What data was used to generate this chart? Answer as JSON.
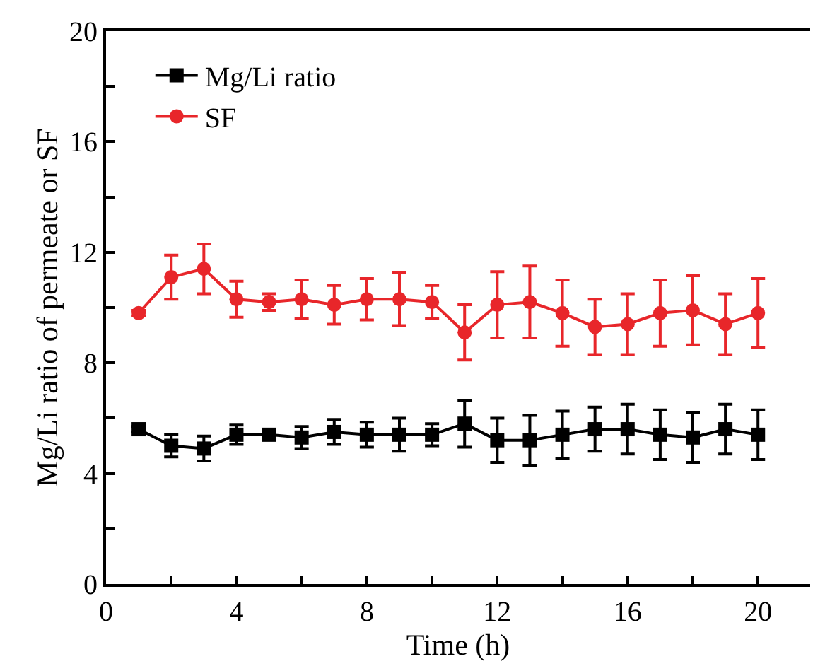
{
  "chart_data": {
    "type": "line",
    "xlabel": "Time (h)",
    "ylabel": "Mg/Li ratio of permeate or SF",
    "x": [
      1,
      2,
      3,
      4,
      5,
      6,
      7,
      8,
      9,
      10,
      11,
      12,
      13,
      14,
      15,
      16,
      17,
      18,
      19,
      20
    ],
    "series": [
      {
        "name": "Mg/Li ratio",
        "color": "#000000",
        "marker": "square",
        "values": [
          5.6,
          5.0,
          4.9,
          5.4,
          5.4,
          5.3,
          5.5,
          5.4,
          5.4,
          5.4,
          5.8,
          5.2,
          5.2,
          5.4,
          5.6,
          5.6,
          5.4,
          5.3,
          5.6,
          5.4
        ],
        "errors": [
          0.1,
          0.4,
          0.45,
          0.35,
          0.15,
          0.4,
          0.45,
          0.45,
          0.6,
          0.4,
          0.85,
          0.8,
          0.9,
          0.85,
          0.8,
          0.9,
          0.9,
          0.9,
          0.9,
          0.9
        ]
      },
      {
        "name": "SF",
        "color": "#e8262a",
        "marker": "circle",
        "values": [
          9.8,
          11.1,
          11.4,
          10.3,
          10.2,
          10.3,
          10.1,
          10.3,
          10.3,
          10.2,
          9.1,
          10.1,
          10.2,
          9.8,
          9.3,
          9.4,
          9.8,
          9.9,
          9.4,
          9.8
        ],
        "errors": [
          0.1,
          0.8,
          0.9,
          0.65,
          0.3,
          0.7,
          0.7,
          0.75,
          0.95,
          0.6,
          1.0,
          1.2,
          1.3,
          1.2,
          1.0,
          1.1,
          1.2,
          1.25,
          1.1,
          1.25
        ]
      }
    ],
    "xlim": [
      0,
      21.6
    ],
    "ylim": [
      0,
      20
    ],
    "xticks": [
      0,
      {
        "value": 2,
        "label": null
      },
      4,
      {
        "value": 6,
        "label": null
      },
      8,
      {
        "value": 10,
        "label": null
      },
      12,
      {
        "value": 14,
        "label": null
      },
      16,
      {
        "value": 18,
        "label": null
      },
      20
    ],
    "yticks": [
      0,
      {
        "value": 2,
        "label": null
      },
      4,
      {
        "value": 6,
        "label": null
      },
      8,
      {
        "value": 10,
        "label": null
      },
      12,
      {
        "value": 14,
        "label": null
      },
      16,
      {
        "value": 18,
        "label": null
      },
      20
    ],
    "legend": "top left",
    "line_style": "solid"
  }
}
